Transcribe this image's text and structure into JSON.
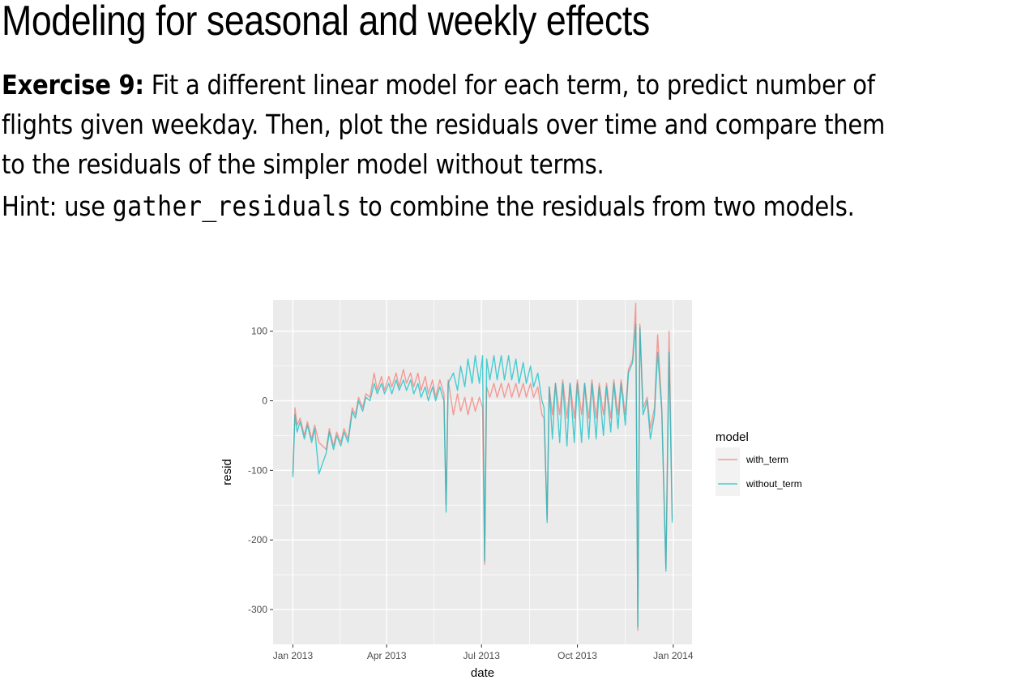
{
  "slide": {
    "title": "Modeling for seasonal and weekly effects",
    "exercise_label": "Exercise 9:",
    "exercise_line1": " Fit a different linear model for each term, to predict number of",
    "exercise_line2": "flights given weekday. Then, plot the residuals over time and compare them",
    "exercise_line3": "to the residuals of the simpler model without terms.",
    "hint_prefix": "Hint: use ",
    "hint_code": "gather_residuals",
    "hint_suffix": " to combine the residuals from two models."
  },
  "chart_data": {
    "type": "line",
    "xlabel": "date",
    "ylabel": "resid",
    "x_ticks": [
      "Jan 2013",
      "Apr 2013",
      "Jul 2013",
      "Oct 2013",
      "Jan 2014"
    ],
    "y_ticks": [
      100,
      0,
      -100,
      -200,
      -300
    ],
    "xlim": [
      "2012-12-13",
      "2014-01-19"
    ],
    "ylim": [
      -350,
      145
    ],
    "grid": true,
    "legend": {
      "title": "model",
      "placement": "right",
      "entries": [
        "with_term",
        "without_term"
      ]
    },
    "colors": {
      "with_term": "#F8766D",
      "without_term": "#00BFC4",
      "panel": "#EBEBEB",
      "grid": "#FFFFFF"
    },
    "series": [
      {
        "name": "with_term",
        "points": [
          [
            "2013-01-01",
            -105
          ],
          [
            "2013-01-03",
            -10
          ],
          [
            "2013-01-05",
            -35
          ],
          [
            "2013-01-08",
            -25
          ],
          [
            "2013-01-12",
            -50
          ],
          [
            "2013-01-15",
            -30
          ],
          [
            "2013-01-19",
            -55
          ],
          [
            "2013-01-22",
            -35
          ],
          [
            "2013-01-26",
            -60
          ],
          [
            "2013-02-02",
            -70
          ],
          [
            "2013-02-05",
            -40
          ],
          [
            "2013-02-09",
            -65
          ],
          [
            "2013-02-12",
            -45
          ],
          [
            "2013-02-16",
            -60
          ],
          [
            "2013-02-19",
            -40
          ],
          [
            "2013-02-23",
            -55
          ],
          [
            "2013-02-27",
            -10
          ],
          [
            "2013-03-02",
            -20
          ],
          [
            "2013-03-05",
            5
          ],
          [
            "2013-03-09",
            -10
          ],
          [
            "2013-03-12",
            10
          ],
          [
            "2013-03-16",
            5
          ],
          [
            "2013-03-20",
            40
          ],
          [
            "2013-03-23",
            15
          ],
          [
            "2013-03-27",
            35
          ],
          [
            "2013-03-30",
            15
          ],
          [
            "2013-04-03",
            35
          ],
          [
            "2013-04-06",
            20
          ],
          [
            "2013-04-10",
            40
          ],
          [
            "2013-04-13",
            20
          ],
          [
            "2013-04-17",
            45
          ],
          [
            "2013-04-20",
            25
          ],
          [
            "2013-04-24",
            40
          ],
          [
            "2013-04-27",
            20
          ],
          [
            "2013-05-01",
            40
          ],
          [
            "2013-05-04",
            15
          ],
          [
            "2013-05-08",
            35
          ],
          [
            "2013-05-11",
            10
          ],
          [
            "2013-05-15",
            30
          ],
          [
            "2013-05-18",
            5
          ],
          [
            "2013-05-22",
            30
          ],
          [
            "2013-05-26",
            10
          ],
          [
            "2013-05-28",
            -150
          ],
          [
            "2013-05-30",
            30
          ],
          [
            "2013-06-04",
            -20
          ],
          [
            "2013-06-08",
            10
          ],
          [
            "2013-06-11",
            -15
          ],
          [
            "2013-06-15",
            5
          ],
          [
            "2013-06-18",
            -20
          ],
          [
            "2013-06-22",
            5
          ],
          [
            "2013-06-25",
            -15
          ],
          [
            "2013-06-29",
            5
          ],
          [
            "2013-07-02",
            -10
          ],
          [
            "2013-07-04",
            -235
          ],
          [
            "2013-07-06",
            20
          ],
          [
            "2013-07-09",
            5
          ],
          [
            "2013-07-13",
            25
          ],
          [
            "2013-07-16",
            5
          ],
          [
            "2013-07-20",
            25
          ],
          [
            "2013-07-23",
            5
          ],
          [
            "2013-07-27",
            25
          ],
          [
            "2013-07-30",
            5
          ],
          [
            "2013-08-03",
            25
          ],
          [
            "2013-08-06",
            5
          ],
          [
            "2013-08-10",
            25
          ],
          [
            "2013-08-13",
            5
          ],
          [
            "2013-08-17",
            25
          ],
          [
            "2013-08-20",
            5
          ],
          [
            "2013-08-24",
            20
          ],
          [
            "2013-08-28",
            -20
          ],
          [
            "2013-08-30",
            -25
          ],
          [
            "2013-09-02",
            -170
          ],
          [
            "2013-09-04",
            20
          ],
          [
            "2013-09-07",
            -20
          ],
          [
            "2013-09-10",
            25
          ],
          [
            "2013-09-14",
            -20
          ],
          [
            "2013-09-17",
            30
          ],
          [
            "2013-09-21",
            -25
          ],
          [
            "2013-09-24",
            25
          ],
          [
            "2013-09-28",
            -25
          ],
          [
            "2013-10-01",
            30
          ],
          [
            "2013-10-05",
            -20
          ],
          [
            "2013-10-08",
            25
          ],
          [
            "2013-10-12",
            -25
          ],
          [
            "2013-10-15",
            30
          ],
          [
            "2013-10-19",
            -25
          ],
          [
            "2013-10-22",
            25
          ],
          [
            "2013-10-26",
            -20
          ],
          [
            "2013-10-29",
            25
          ],
          [
            "2013-11-02",
            -25
          ],
          [
            "2013-11-05",
            30
          ],
          [
            "2013-11-09",
            -20
          ],
          [
            "2013-11-12",
            30
          ],
          [
            "2013-11-16",
            -20
          ],
          [
            "2013-11-19",
            45
          ],
          [
            "2013-11-23",
            60
          ],
          [
            "2013-11-26",
            140
          ],
          [
            "2013-11-28",
            -330
          ],
          [
            "2013-11-30",
            110
          ],
          [
            "2013-12-03",
            -10
          ],
          [
            "2013-12-07",
            5
          ],
          [
            "2013-12-10",
            -40
          ],
          [
            "2013-12-14",
            -10
          ],
          [
            "2013-12-17",
            95
          ],
          [
            "2013-12-21",
            -10
          ],
          [
            "2013-12-25",
            -240
          ],
          [
            "2013-12-28",
            100
          ],
          [
            "2013-12-31",
            -170
          ]
        ]
      },
      {
        "name": "without_term",
        "points": [
          [
            "2013-01-01",
            -110
          ],
          [
            "2013-01-03",
            -20
          ],
          [
            "2013-01-05",
            -45
          ],
          [
            "2013-01-08",
            -30
          ],
          [
            "2013-01-12",
            -55
          ],
          [
            "2013-01-15",
            -35
          ],
          [
            "2013-01-19",
            -60
          ],
          [
            "2013-01-22",
            -40
          ],
          [
            "2013-01-26",
            -105
          ],
          [
            "2013-02-02",
            -75
          ],
          [
            "2013-02-05",
            -45
          ],
          [
            "2013-02-09",
            -70
          ],
          [
            "2013-02-12",
            -50
          ],
          [
            "2013-02-16",
            -65
          ],
          [
            "2013-02-19",
            -45
          ],
          [
            "2013-02-23",
            -60
          ],
          [
            "2013-02-27",
            -15
          ],
          [
            "2013-03-02",
            -25
          ],
          [
            "2013-03-05",
            0
          ],
          [
            "2013-03-09",
            -15
          ],
          [
            "2013-03-12",
            5
          ],
          [
            "2013-03-16",
            0
          ],
          [
            "2013-03-20",
            25
          ],
          [
            "2013-03-23",
            10
          ],
          [
            "2013-03-27",
            25
          ],
          [
            "2013-03-30",
            10
          ],
          [
            "2013-04-03",
            25
          ],
          [
            "2013-04-06",
            10
          ],
          [
            "2013-04-10",
            30
          ],
          [
            "2013-04-13",
            15
          ],
          [
            "2013-04-17",
            30
          ],
          [
            "2013-04-20",
            15
          ],
          [
            "2013-04-24",
            30
          ],
          [
            "2013-04-27",
            10
          ],
          [
            "2013-05-01",
            25
          ],
          [
            "2013-05-04",
            5
          ],
          [
            "2013-05-08",
            20
          ],
          [
            "2013-05-11",
            0
          ],
          [
            "2013-05-15",
            20
          ],
          [
            "2013-05-18",
            0
          ],
          [
            "2013-05-22",
            20
          ],
          [
            "2013-05-26",
            0
          ],
          [
            "2013-05-28",
            -160
          ],
          [
            "2013-05-30",
            25
          ],
          [
            "2013-06-04",
            40
          ],
          [
            "2013-06-08",
            15
          ],
          [
            "2013-06-11",
            50
          ],
          [
            "2013-06-15",
            20
          ],
          [
            "2013-06-18",
            60
          ],
          [
            "2013-06-22",
            25
          ],
          [
            "2013-06-25",
            65
          ],
          [
            "2013-06-29",
            25
          ],
          [
            "2013-07-02",
            65
          ],
          [
            "2013-07-04",
            -230
          ],
          [
            "2013-07-06",
            60
          ],
          [
            "2013-07-09",
            30
          ],
          [
            "2013-07-13",
            65
          ],
          [
            "2013-07-16",
            30
          ],
          [
            "2013-07-20",
            65
          ],
          [
            "2013-07-23",
            30
          ],
          [
            "2013-07-27",
            65
          ],
          [
            "2013-07-30",
            30
          ],
          [
            "2013-08-03",
            60
          ],
          [
            "2013-08-06",
            25
          ],
          [
            "2013-08-10",
            55
          ],
          [
            "2013-08-13",
            25
          ],
          [
            "2013-08-17",
            50
          ],
          [
            "2013-08-20",
            20
          ],
          [
            "2013-08-24",
            40
          ],
          [
            "2013-08-28",
            0
          ],
          [
            "2013-08-30",
            -10
          ],
          [
            "2013-09-02",
            -175
          ],
          [
            "2013-09-04",
            20
          ],
          [
            "2013-09-07",
            -55
          ],
          [
            "2013-09-10",
            25
          ],
          [
            "2013-09-14",
            -60
          ],
          [
            "2013-09-17",
            25
          ],
          [
            "2013-09-21",
            -65
          ],
          [
            "2013-09-24",
            25
          ],
          [
            "2013-09-28",
            -60
          ],
          [
            "2013-10-01",
            25
          ],
          [
            "2013-10-05",
            -60
          ],
          [
            "2013-10-08",
            25
          ],
          [
            "2013-10-12",
            -55
          ],
          [
            "2013-10-15",
            25
          ],
          [
            "2013-10-19",
            -55
          ],
          [
            "2013-10-22",
            20
          ],
          [
            "2013-10-26",
            -50
          ],
          [
            "2013-10-29",
            20
          ],
          [
            "2013-11-02",
            -45
          ],
          [
            "2013-11-05",
            25
          ],
          [
            "2013-11-09",
            -40
          ],
          [
            "2013-11-12",
            25
          ],
          [
            "2013-11-16",
            -35
          ],
          [
            "2013-11-19",
            40
          ],
          [
            "2013-11-23",
            55
          ],
          [
            "2013-11-26",
            110
          ],
          [
            "2013-11-28",
            -325
          ],
          [
            "2013-11-30",
            105
          ],
          [
            "2013-12-03",
            -20
          ],
          [
            "2013-12-07",
            0
          ],
          [
            "2013-12-10",
            -55
          ],
          [
            "2013-12-14",
            -20
          ],
          [
            "2013-12-17",
            70
          ],
          [
            "2013-12-21",
            -15
          ],
          [
            "2013-12-25",
            -245
          ],
          [
            "2013-12-28",
            70
          ],
          [
            "2013-12-31",
            -175
          ]
        ]
      }
    ]
  }
}
